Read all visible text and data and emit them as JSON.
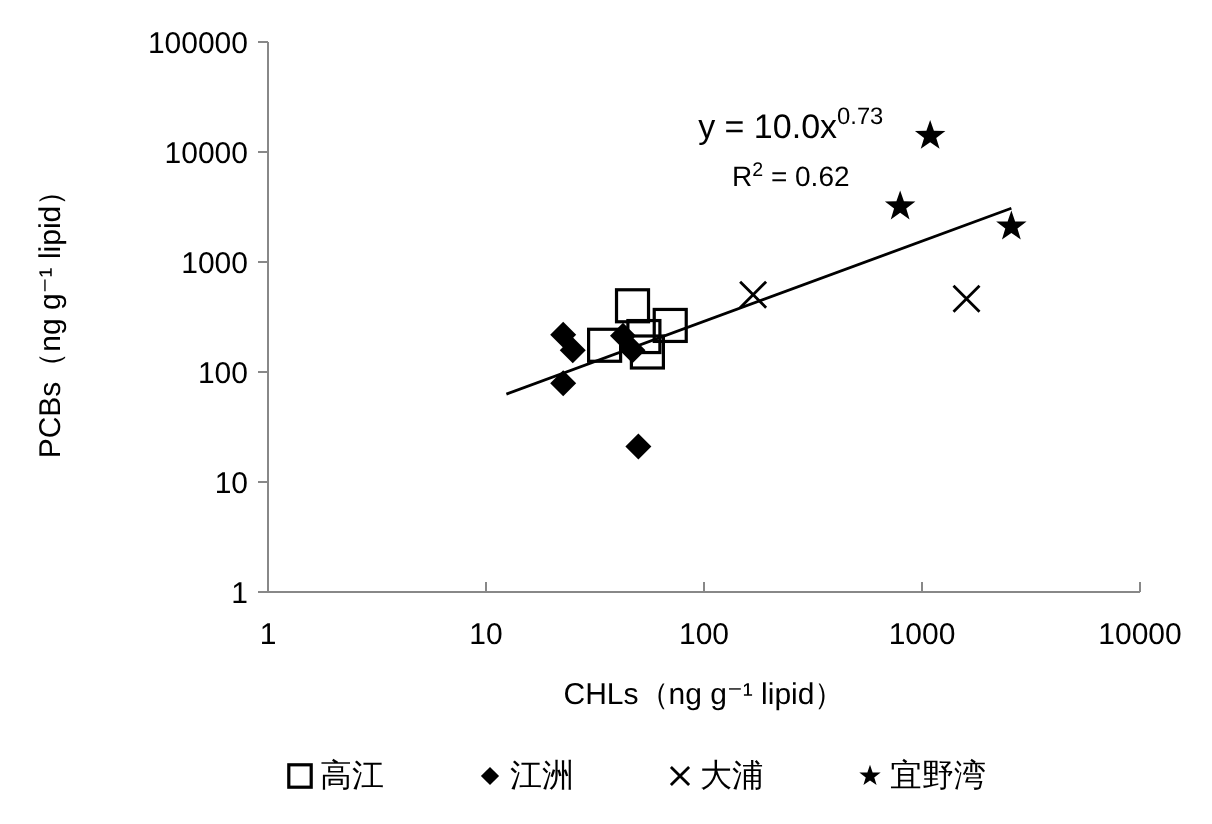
{
  "chart_data": {
    "type": "scatter",
    "xlabel": "CHLs（ng g⁻¹ lipid）",
    "ylabel": "PCBs（ng g⁻¹ lipid）",
    "log": "xy",
    "xlim": [
      1,
      10000
    ],
    "xticks": [
      1,
      10,
      100,
      1000,
      10000
    ],
    "ylim": [
      1,
      100000
    ],
    "yticks": [
      1,
      10,
      100,
      1000,
      10000,
      100000
    ],
    "grid": false,
    "legend": "bottom",
    "annotations": [
      "y = 10.0x$^{0.73}$",
      "R$^{2}$ = 0.62"
    ],
    "series": [
      {
        "name": "高江",
        "color": "#000000",
        "marker": "square",
        "x": [
          47,
          70,
          35,
          55,
          53
        ],
        "values": [
          400,
          265,
          175,
          152,
          210
        ]
      },
      {
        "name": "江洲",
        "color": "#000000",
        "marker": "diamond",
        "x": [
          22.6,
          25,
          22.6,
          50,
          42.5,
          47
        ],
        "values": [
          218,
          158,
          79,
          21,
          214,
          158
        ]
      },
      {
        "name": "大浦",
        "color": "#000000",
        "marker": "cross",
        "x": [
          168,
          1600
        ],
        "values": [
          505,
          464
        ]
      },
      {
        "name": "宜野湾",
        "color": "#000000",
        "marker": "star",
        "x": [
          1090,
          794,
          2570
        ],
        "values": [
          14000,
          3200,
          2100
        ]
      },
      {
        "type": "line",
        "color": "#000000",
        "line_style": "solid",
        "x": [
          12.4,
          2570
        ],
        "values": [
          63,
          3080
        ]
      }
    ]
  }
}
